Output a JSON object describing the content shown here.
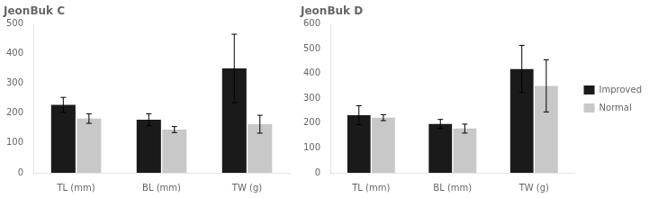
{
  "chart_data": [
    {
      "type": "bar",
      "title": "JeonBuk C",
      "categories": [
        "TL (mm)",
        "BL (mm)",
        "TW (g)"
      ],
      "series": [
        {
          "name": "Improved",
          "color": "#1a1a1a",
          "values": [
            228,
            178,
            350
          ],
          "errors": [
            25,
            20,
            115
          ]
        },
        {
          "name": "Normal",
          "color": "#c8c8c8",
          "values": [
            182,
            145,
            163
          ],
          "errors": [
            16,
            10,
            30
          ]
        }
      ],
      "ylim": [
        0,
        500
      ],
      "yticks": [
        0,
        100,
        200,
        300,
        400,
        500
      ],
      "grid": false,
      "legend": false
    },
    {
      "type": "bar",
      "title": "JeonBuk D",
      "categories": [
        "TL (mm)",
        "BL (mm)",
        "TW (g)"
      ],
      "series": [
        {
          "name": "Improved",
          "color": "#1a1a1a",
          "values": [
            232,
            197,
            418
          ],
          "errors": [
            38,
            18,
            95
          ]
        },
        {
          "name": "Normal",
          "color": "#c8c8c8",
          "values": [
            222,
            178,
            350
          ],
          "errors": [
            12,
            18,
            105
          ]
        }
      ],
      "ylim": [
        0,
        600
      ],
      "yticks": [
        0,
        100,
        200,
        300,
        400,
        500,
        600
      ],
      "grid": false,
      "legend": "right"
    }
  ]
}
